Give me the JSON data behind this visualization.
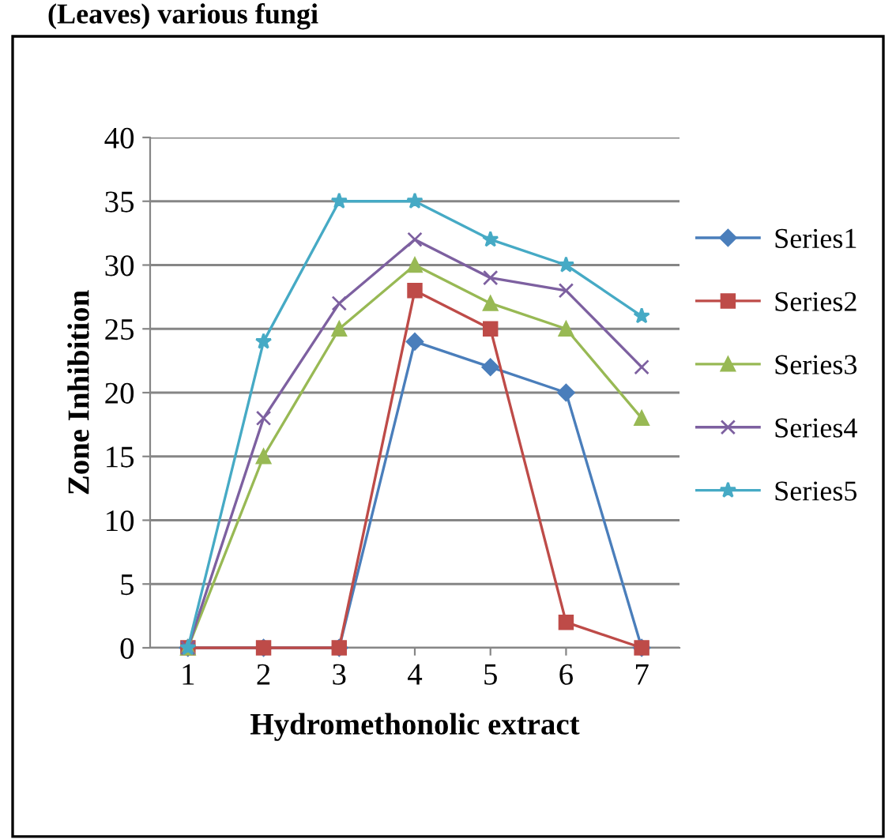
{
  "chart_data": {
    "type": "line",
    "title": "(Leaves) various fungi",
    "xlabel": "Hydromethonolic extract",
    "ylabel": "Zone Inhibition",
    "categories": [
      "1",
      "2",
      "3",
      "4",
      "5",
      "6",
      "7"
    ],
    "series": [
      {
        "name": "Series1",
        "color": "#4a7ebb",
        "marker": "diamond",
        "values": [
          0,
          0,
          0,
          24,
          22,
          20,
          0
        ]
      },
      {
        "name": "Series2",
        "color": "#be4b48",
        "marker": "square",
        "values": [
          0,
          0,
          0,
          28,
          25,
          2,
          0
        ]
      },
      {
        "name": "Series3",
        "color": "#98b954",
        "marker": "triangle",
        "values": [
          0,
          15,
          25,
          30,
          27,
          25,
          18
        ]
      },
      {
        "name": "Series4",
        "color": "#7d60a0",
        "marker": "cross",
        "values": [
          0,
          18,
          27,
          32,
          29,
          28,
          22
        ]
      },
      {
        "name": "Series5",
        "color": "#46aac5",
        "marker": "star",
        "values": [
          0,
          24,
          35,
          35,
          32,
          30,
          26
        ]
      }
    ],
    "ylim": [
      0,
      40
    ],
    "yticks": [
      0,
      5,
      10,
      15,
      20,
      25,
      30,
      35,
      40
    ],
    "grid": "y",
    "legend": "right"
  }
}
